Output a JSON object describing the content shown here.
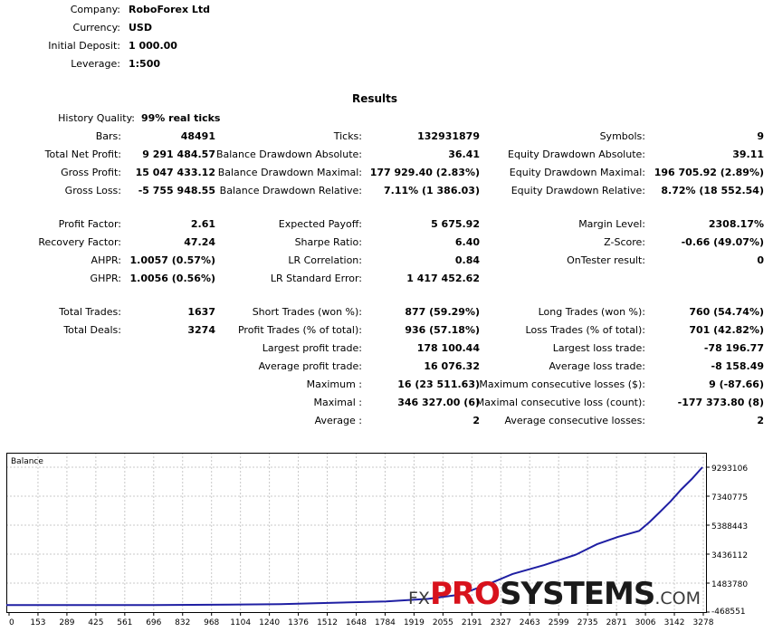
{
  "header": {
    "company_label": "Company:",
    "company_value": "RoboForex Ltd",
    "currency_label": "Currency:",
    "currency_value": "USD",
    "deposit_label": "Initial Deposit:",
    "deposit_value": "1 000.00",
    "leverage_label": "Leverage:",
    "leverage_value": "1:500"
  },
  "results_title": "Results",
  "history_quality_label": "History Quality:",
  "history_quality_value": "99% real ticks",
  "rows": [
    [
      [
        "Bars:",
        "48491"
      ],
      [
        "Ticks:",
        "132931879"
      ],
      [
        "Symbols:",
        "9"
      ]
    ],
    [
      [
        "Total Net Profit:",
        "9 291 484.57"
      ],
      [
        "Balance Drawdown Absolute:",
        "36.41"
      ],
      [
        "Equity Drawdown Absolute:",
        "39.11"
      ]
    ],
    [
      [
        "Gross Profit:",
        "15 047 433.12"
      ],
      [
        "Balance Drawdown Maximal:",
        "177 929.40 (2.83%)"
      ],
      [
        "Equity Drawdown Maximal:",
        "196 705.92 (2.89%)"
      ]
    ],
    [
      [
        "Gross Loss:",
        "-5 755 948.55"
      ],
      [
        "Balance Drawdown Relative:",
        "7.11% (1 386.03)"
      ],
      [
        "Equity Drawdown Relative:",
        "8.72% (18 552.54)"
      ]
    ],
    [
      [
        "Profit Factor:",
        "2.61"
      ],
      [
        "Expected Payoff:",
        "5 675.92"
      ],
      [
        "Margin Level:",
        "2308.17%"
      ]
    ],
    [
      [
        "Recovery Factor:",
        "47.24"
      ],
      [
        "Sharpe Ratio:",
        "6.40"
      ],
      [
        "Z-Score:",
        "-0.66 (49.07%)"
      ]
    ],
    [
      [
        "AHPR:",
        "1.0057 (0.57%)"
      ],
      [
        "LR Correlation:",
        "0.84"
      ],
      [
        "OnTester result:",
        "0"
      ]
    ],
    [
      [
        "GHPR:",
        "1.0056 (0.56%)"
      ],
      [
        "LR Standard Error:",
        "1 417 452.62"
      ],
      [
        "",
        ""
      ]
    ],
    [
      [
        "Total Trades:",
        "1637"
      ],
      [
        "Short Trades (won %):",
        "877 (59.29%)"
      ],
      [
        "Long Trades (won %):",
        "760 (54.74%)"
      ]
    ],
    [
      [
        "Total Deals:",
        "3274"
      ],
      [
        "Profit Trades (% of total):",
        "936 (57.18%)"
      ],
      [
        "Loss Trades (% of total):",
        "701 (42.82%)"
      ]
    ],
    [
      [
        "",
        ""
      ],
      [
        "Largest profit trade:",
        "178 100.44"
      ],
      [
        "Largest loss trade:",
        "-78 196.77"
      ]
    ],
    [
      [
        "",
        ""
      ],
      [
        "Average profit trade:",
        "16 076.32"
      ],
      [
        "Average loss trade:",
        "-8 158.49"
      ]
    ],
    [
      [
        "",
        ""
      ],
      [
        "Maximum :",
        "16 (23 511.63)"
      ],
      [
        "Maximum consecutive losses ($):",
        "9 (-87.66)"
      ]
    ],
    [
      [
        "",
        ""
      ],
      [
        "Maximal :",
        "346 327.00 (6)"
      ],
      [
        "Maximal consecutive loss (count):",
        "-177 373.80 (8)"
      ]
    ],
    [
      [
        "",
        ""
      ],
      [
        "Average :",
        "2"
      ],
      [
        "Average consecutive losses:",
        "2"
      ]
    ]
  ],
  "chart_data": {
    "type": "line",
    "title": "Balance",
    "series": [
      {
        "values": [
          [
            0,
            36
          ],
          [
            700,
            36
          ],
          [
            1300,
            60000
          ],
          [
            1800,
            250000
          ],
          [
            2000,
            420000
          ],
          [
            2150,
            700000
          ],
          [
            2300,
            1500000
          ],
          [
            2400,
            2100000
          ],
          [
            2550,
            2700000
          ],
          [
            2700,
            3400000
          ],
          [
            2800,
            4100000
          ],
          [
            2900,
            4600000
          ],
          [
            3000,
            5000000
          ],
          [
            3050,
            5600000
          ],
          [
            3100,
            6300000
          ],
          [
            3150,
            7000000
          ],
          [
            3200,
            7800000
          ],
          [
            3250,
            8500000
          ],
          [
            3300,
            9291484
          ]
        ]
      }
    ],
    "x_ticks": [
      "0",
      "153",
      "289",
      "425",
      "561",
      "696",
      "832",
      "968",
      "1104",
      "1240",
      "1376",
      "1512",
      "1648",
      "1784",
      "1919",
      "2055",
      "2191",
      "2327",
      "2463",
      "2599",
      "2735",
      "2871",
      "3006",
      "3142",
      "3278"
    ],
    "y_ticks": [
      "9293106",
      "7340775",
      "5388443",
      "3436112",
      "1483780",
      "-468551"
    ],
    "ylim": [
      -468551,
      9293106
    ],
    "xlim": [
      0,
      3300
    ],
    "grid": true,
    "colors": {
      "line": "#1f1fa3",
      "grid": "#c8c8c8",
      "frame": "#000000"
    }
  },
  "watermark": {
    "fx": "FX",
    "pro": "PRO",
    "systems": "SYSTEMS",
    "com": ".COM"
  }
}
